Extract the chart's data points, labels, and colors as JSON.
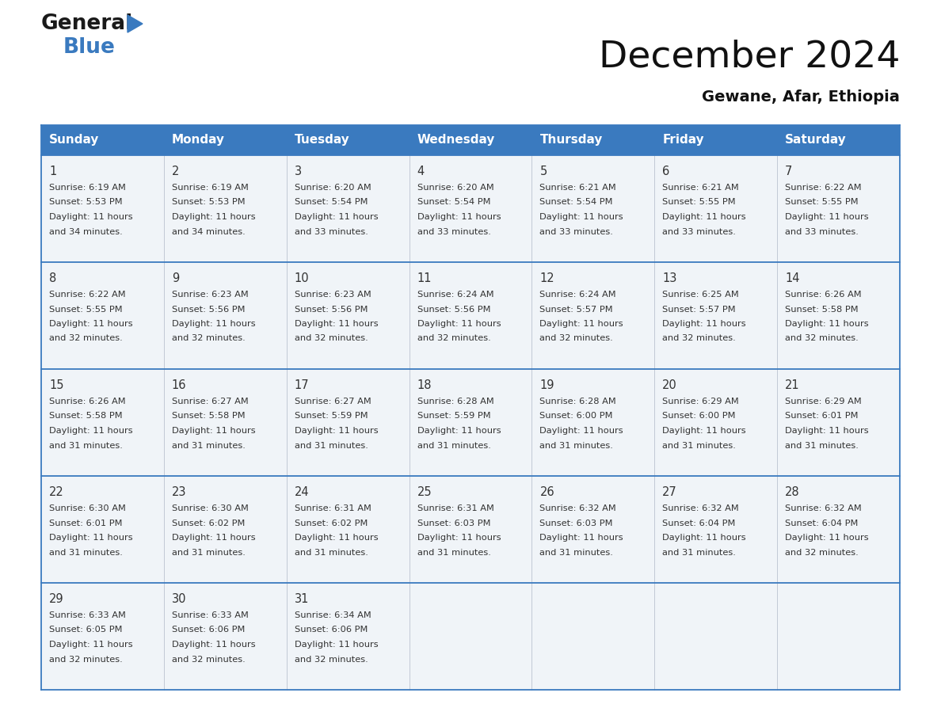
{
  "title": "December 2024",
  "subtitle": "Gewane, Afar, Ethiopia",
  "header_color": "#3a7abf",
  "header_text_color": "#ffffff",
  "days_of_week": [
    "Sunday",
    "Monday",
    "Tuesday",
    "Wednesday",
    "Thursday",
    "Friday",
    "Saturday"
  ],
  "cell_bg_color": "#f0f4f8",
  "border_color": "#3a7abf",
  "text_color": "#333333",
  "day_num_color": "#333333",
  "calendar_data": [
    [
      {
        "day": 1,
        "sunrise": "6:19 AM",
        "sunset": "5:53 PM",
        "daylight": "11 hours\nand 34 minutes."
      },
      {
        "day": 2,
        "sunrise": "6:19 AM",
        "sunset": "5:53 PM",
        "daylight": "11 hours\nand 34 minutes."
      },
      {
        "day": 3,
        "sunrise": "6:20 AM",
        "sunset": "5:54 PM",
        "daylight": "11 hours\nand 33 minutes."
      },
      {
        "day": 4,
        "sunrise": "6:20 AM",
        "sunset": "5:54 PM",
        "daylight": "11 hours\nand 33 minutes."
      },
      {
        "day": 5,
        "sunrise": "6:21 AM",
        "sunset": "5:54 PM",
        "daylight": "11 hours\nand 33 minutes."
      },
      {
        "day": 6,
        "sunrise": "6:21 AM",
        "sunset": "5:55 PM",
        "daylight": "11 hours\nand 33 minutes."
      },
      {
        "day": 7,
        "sunrise": "6:22 AM",
        "sunset": "5:55 PM",
        "daylight": "11 hours\nand 33 minutes."
      }
    ],
    [
      {
        "day": 8,
        "sunrise": "6:22 AM",
        "sunset": "5:55 PM",
        "daylight": "11 hours\nand 32 minutes."
      },
      {
        "day": 9,
        "sunrise": "6:23 AM",
        "sunset": "5:56 PM",
        "daylight": "11 hours\nand 32 minutes."
      },
      {
        "day": 10,
        "sunrise": "6:23 AM",
        "sunset": "5:56 PM",
        "daylight": "11 hours\nand 32 minutes."
      },
      {
        "day": 11,
        "sunrise": "6:24 AM",
        "sunset": "5:56 PM",
        "daylight": "11 hours\nand 32 minutes."
      },
      {
        "day": 12,
        "sunrise": "6:24 AM",
        "sunset": "5:57 PM",
        "daylight": "11 hours\nand 32 minutes."
      },
      {
        "day": 13,
        "sunrise": "6:25 AM",
        "sunset": "5:57 PM",
        "daylight": "11 hours\nand 32 minutes."
      },
      {
        "day": 14,
        "sunrise": "6:26 AM",
        "sunset": "5:58 PM",
        "daylight": "11 hours\nand 32 minutes."
      }
    ],
    [
      {
        "day": 15,
        "sunrise": "6:26 AM",
        "sunset": "5:58 PM",
        "daylight": "11 hours\nand 31 minutes."
      },
      {
        "day": 16,
        "sunrise": "6:27 AM",
        "sunset": "5:58 PM",
        "daylight": "11 hours\nand 31 minutes."
      },
      {
        "day": 17,
        "sunrise": "6:27 AM",
        "sunset": "5:59 PM",
        "daylight": "11 hours\nand 31 minutes."
      },
      {
        "day": 18,
        "sunrise": "6:28 AM",
        "sunset": "5:59 PM",
        "daylight": "11 hours\nand 31 minutes."
      },
      {
        "day": 19,
        "sunrise": "6:28 AM",
        "sunset": "6:00 PM",
        "daylight": "11 hours\nand 31 minutes."
      },
      {
        "day": 20,
        "sunrise": "6:29 AM",
        "sunset": "6:00 PM",
        "daylight": "11 hours\nand 31 minutes."
      },
      {
        "day": 21,
        "sunrise": "6:29 AM",
        "sunset": "6:01 PM",
        "daylight": "11 hours\nand 31 minutes."
      }
    ],
    [
      {
        "day": 22,
        "sunrise": "6:30 AM",
        "sunset": "6:01 PM",
        "daylight": "11 hours\nand 31 minutes."
      },
      {
        "day": 23,
        "sunrise": "6:30 AM",
        "sunset": "6:02 PM",
        "daylight": "11 hours\nand 31 minutes."
      },
      {
        "day": 24,
        "sunrise": "6:31 AM",
        "sunset": "6:02 PM",
        "daylight": "11 hours\nand 31 minutes."
      },
      {
        "day": 25,
        "sunrise": "6:31 AM",
        "sunset": "6:03 PM",
        "daylight": "11 hours\nand 31 minutes."
      },
      {
        "day": 26,
        "sunrise": "6:32 AM",
        "sunset": "6:03 PM",
        "daylight": "11 hours\nand 31 minutes."
      },
      {
        "day": 27,
        "sunrise": "6:32 AM",
        "sunset": "6:04 PM",
        "daylight": "11 hours\nand 31 minutes."
      },
      {
        "day": 28,
        "sunrise": "6:32 AM",
        "sunset": "6:04 PM",
        "daylight": "11 hours\nand 32 minutes."
      }
    ],
    [
      {
        "day": 29,
        "sunrise": "6:33 AM",
        "sunset": "6:05 PM",
        "daylight": "11 hours\nand 32 minutes."
      },
      {
        "day": 30,
        "sunrise": "6:33 AM",
        "sunset": "6:06 PM",
        "daylight": "11 hours\nand 32 minutes."
      },
      {
        "day": 31,
        "sunrise": "6:34 AM",
        "sunset": "6:06 PM",
        "daylight": "11 hours\nand 32 minutes."
      },
      null,
      null,
      null,
      null
    ]
  ],
  "logo_text_general": "General",
  "logo_text_blue": "Blue",
  "logo_color_general": "#1a1a1a",
  "logo_color_blue": "#3a7abf",
  "logo_triangle_color": "#3a7abf",
  "fig_width": 11.88,
  "fig_height": 9.18,
  "dpi": 100
}
